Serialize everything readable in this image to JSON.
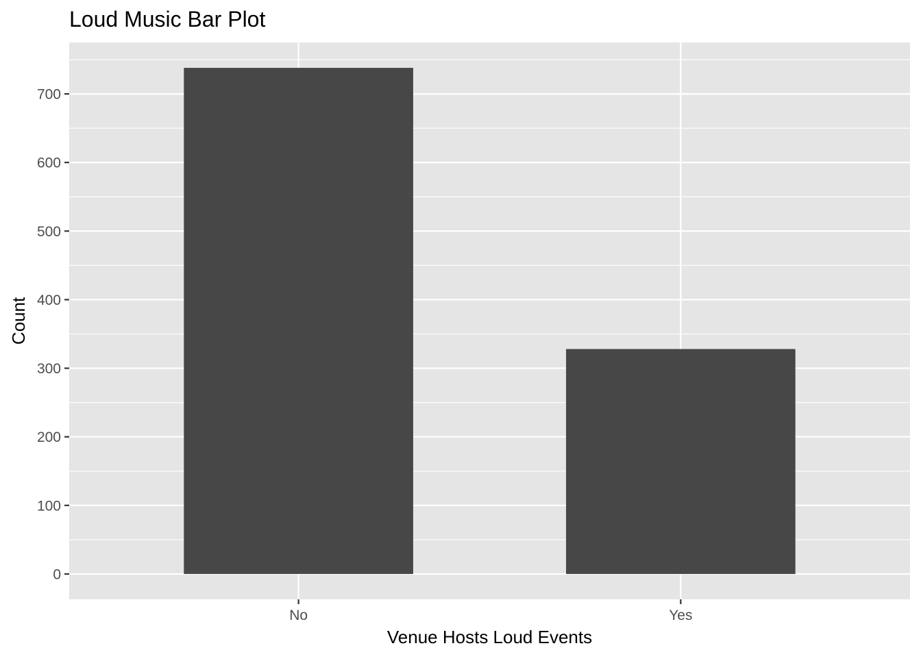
{
  "chart_data": {
    "type": "bar",
    "title": "Loud Music Bar Plot",
    "xlabel": "Venue Hosts Loud Events",
    "ylabel": "Count",
    "categories": [
      "No",
      "Yes"
    ],
    "values": [
      738,
      328
    ],
    "ylim": [
      -37,
      775
    ],
    "yticks": [
      0,
      100,
      200,
      300,
      400,
      500,
      600,
      700
    ],
    "grid": true,
    "legend": "none",
    "colors": {
      "panel_background": "#e5e5e5",
      "grid": "#ffffff",
      "bar_fill": "#474747",
      "axis_text": "#4d4d4d",
      "title_text": "#000000",
      "tick_mark": "#333333"
    }
  }
}
